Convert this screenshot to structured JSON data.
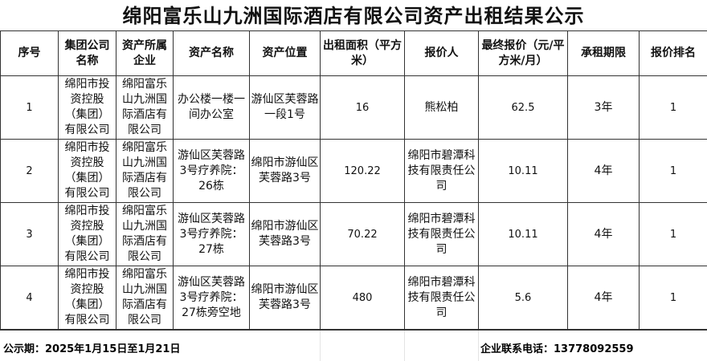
{
  "title": "绵阳富乐山九洲国际酒店有限公司资产出租结果公示",
  "headers": [
    "序号",
    "集团公司名称",
    "资产所属企业",
    "资产名称",
    "资产位置",
    "出租面积（平方米）",
    "报价人",
    "最终报价（元/平方米/月）",
    "承租期限",
    "报价排名"
  ],
  "rows": [
    [
      "1",
      "绵阳市投资控股（集团）有限公司",
      "绵阳富乐山九洲国际酒店有限公司",
      "办公楼一楼一间办公室",
      "游仙区芙蓉路一段1号",
      "16",
      "熊松柏",
      "62.5",
      "3年",
      "1"
    ],
    [
      "2",
      "绵阳市投资控股（集团）有限公司",
      "绵阳富乐山九洲国际酒店有限公司",
      "游仙区芙蓉路3号疗养院：26栋",
      "绵阳市游仙区芙蓉路3号",
      "120.22",
      "绵阳市碧潭科技有限责任公司",
      "10.11",
      "4年",
      "1"
    ],
    [
      "3",
      "绵阳市投资控股（集团）有限公司",
      "绵阳富乐山九洲国际酒店有限公司",
      "游仙区芙蓉路3号疗养院：27栋",
      "绵阳市游仙区芙蓉路3号",
      "70.22",
      "绵阳市碧潭科技有限责任公司",
      "10.11",
      "4年",
      "1"
    ],
    [
      "4",
      "绵阳市投资控股（集团）有限公司",
      "绵阳富乐山九洲国际酒店有限公司",
      "游仙区芙蓉路3号疗养院：27栋旁空地",
      "绵阳市游仙区芙蓉路3号",
      "480",
      "绵阳市碧潭科技有限责任公司",
      "5.6",
      "4年",
      "1"
    ]
  ],
  "footer": {
    "period": "公示期：2025年1月15日至1月21日",
    "phone": "企业联系电话：13778092559"
  }
}
